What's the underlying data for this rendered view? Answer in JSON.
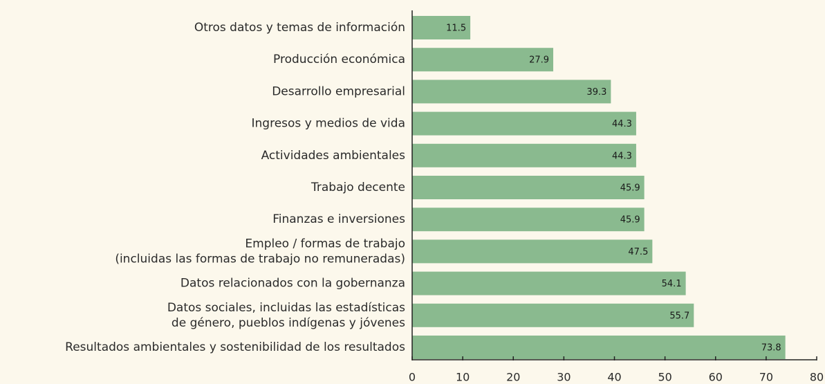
{
  "chart_data": {
    "type": "bar",
    "orientation": "horizontal",
    "categories": [
      "Otros datos y temas de información",
      "Producción económica",
      "Desarrollo empresarial",
      "Ingresos y medios de vida",
      "Actividades ambientales",
      "Trabajo decente",
      "Finanzas e inversiones",
      [
        "Empleo / formas de trabajo",
        "(incluidas las formas de trabajo no remuneradas)"
      ],
      "Datos relacionados con la gobernanza",
      [
        "Datos sociales, incluidas las estadísticas",
        "de género, pueblos indígenas y jóvenes"
      ],
      "Resultados ambientales y sostenibilidad de los resultados"
    ],
    "values": [
      11.5,
      27.9,
      39.3,
      44.3,
      44.3,
      45.9,
      45.9,
      47.5,
      54.1,
      55.7,
      73.8
    ],
    "color": "#8aba8f",
    "xlim": [
      0,
      80
    ],
    "xticks": [
      0,
      10,
      20,
      30,
      40,
      50,
      60,
      70,
      80
    ],
    "grid": false
  }
}
